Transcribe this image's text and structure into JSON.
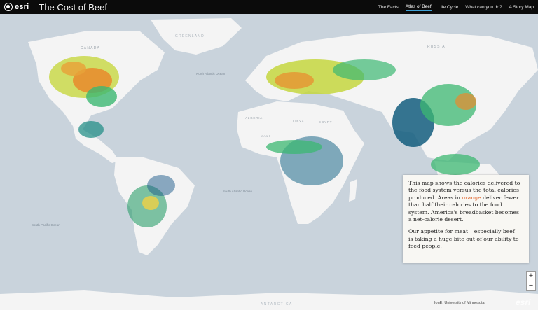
{
  "header": {
    "logo_text": "esri",
    "title": "The Cost of Beef",
    "nav": [
      {
        "label": "The Facts",
        "active": false
      },
      {
        "label": "Atlas of Beef",
        "active": true
      },
      {
        "label": "Life Cycle",
        "active": false
      },
      {
        "label": "What can you do?",
        "active": false
      },
      {
        "label": "A Story Map",
        "active": false
      }
    ]
  },
  "map": {
    "labels": {
      "greenland": "GREENLAND",
      "antarctica": "ANTARCTICA",
      "algeria": "ALGERIA",
      "libya": "LIBYA",
      "egypt": "EGYPT",
      "mali": "MALI",
      "russia": "RUSSIA",
      "canada": "CANADA",
      "north_atlantic": "North Atlantic Ocean",
      "south_atlantic": "South Atlantic Ocean",
      "south_pacific": "South Pacific Ocean"
    },
    "attribution": "IonE, University of Minnesota",
    "watermark": "esri"
  },
  "info_panel": {
    "p1_a": "This map shows the calories delivered to the food system versus the total calories produced. Areas in ",
    "p1_orange": "orange",
    "p1_b": " deliver fewer than half their calories to the food system. America's breadbasket becomes a net-calorie desert.",
    "p2": "Our appetite for meat – especially beef – is taking a huge bite out of our ability to feed people.",
    "highlight_color": "#e0632a"
  },
  "zoom": {
    "in": "+",
    "out": "−"
  }
}
